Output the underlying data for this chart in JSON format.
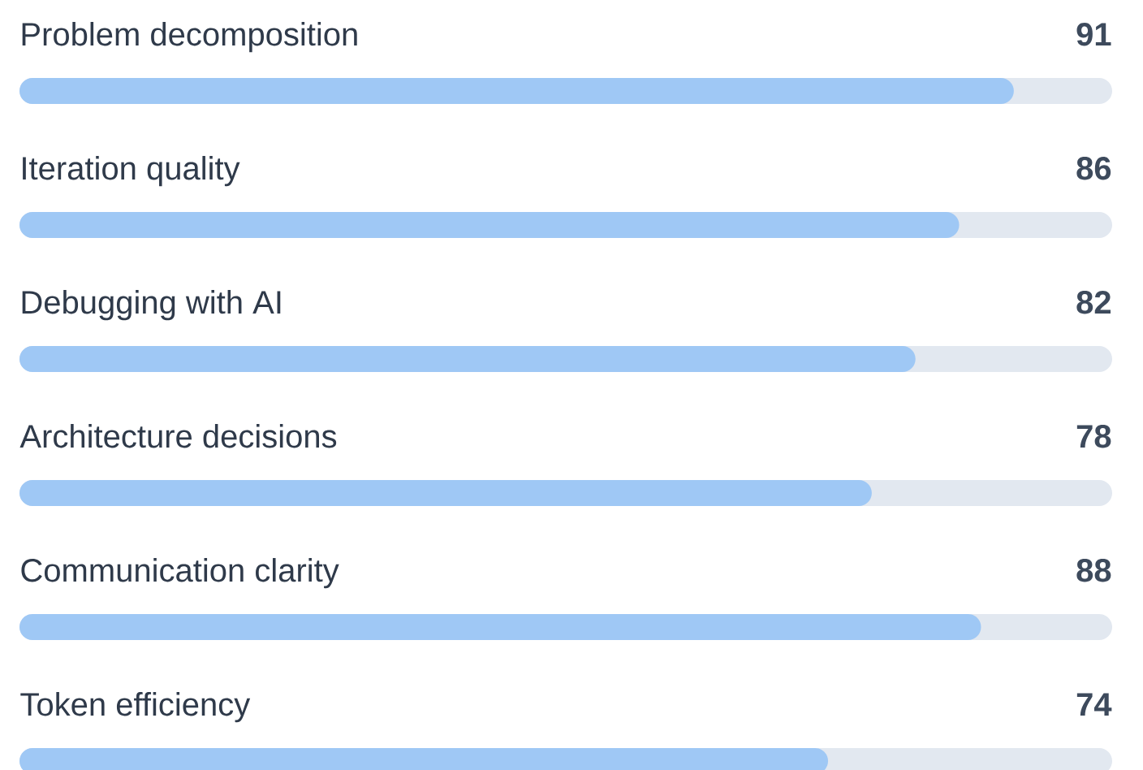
{
  "chart_data": {
    "type": "bar",
    "orientation": "horizontal",
    "categories": [
      "Problem decomposition",
      "Iteration quality",
      "Debugging with AI",
      "Architecture decisions",
      "Communication clarity",
      "Token efficiency"
    ],
    "values": [
      91,
      86,
      82,
      78,
      88,
      74
    ],
    "color": "#9fc8f5",
    "xlim": [
      0,
      100
    ],
    "data_labels": true
  }
}
